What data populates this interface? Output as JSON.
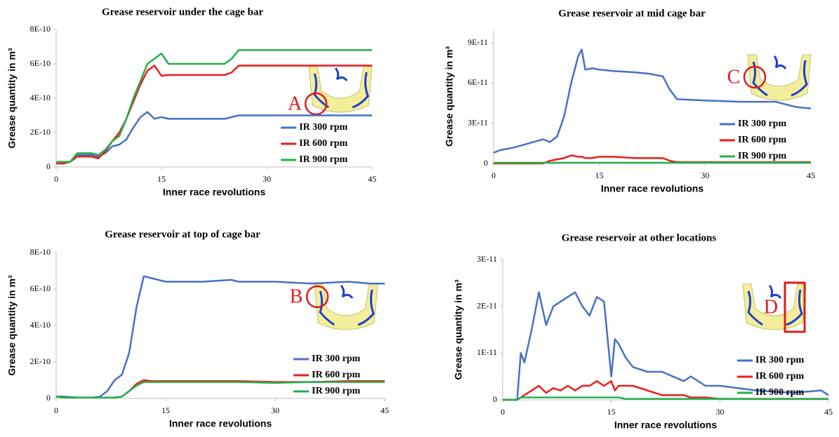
{
  "chart_data": [
    {
      "type": "line",
      "title": "Grease reservoir under the cage bar",
      "x_label": "Inner race revolutions",
      "y_label": "Grease quantity in m³",
      "annotation": "A",
      "legend": "lower right",
      "x": [
        0,
        1,
        2,
        3,
        4,
        5,
        6,
        7,
        8,
        9,
        10,
        11,
        12,
        13,
        14,
        15,
        16,
        20,
        24,
        25,
        26,
        30,
        35,
        40,
        45
      ],
      "xlim": [
        0,
        45
      ],
      "xticks": [
        0,
        15,
        30,
        45
      ],
      "ylim": [
        0,
        8e-10
      ],
      "yticks": [
        0,
        {
          "value": 2e-10,
          "label": "2E-10"
        },
        {
          "value": 4e-10,
          "label": "4E-10"
        },
        {
          "value": 6e-10,
          "label": "6E-10"
        },
        {
          "value": 8e-10,
          "label": "8E-10"
        }
      ],
      "series": [
        {
          "name": "IR 300 rpm",
          "color": "#4472c4",
          "values": [
            2e-11,
            2e-11,
            3e-11,
            7e-11,
            7e-11,
            7e-11,
            6e-11,
            8e-11,
            1.2e-10,
            1.3e-10,
            1.6e-10,
            2.3e-10,
            2.9e-10,
            3.2e-10,
            2.8e-10,
            2.9e-10,
            2.8e-10,
            2.8e-10,
            2.8e-10,
            2.9e-10,
            3e-10,
            3e-10,
            3e-10,
            3e-10,
            3e-10
          ]
        },
        {
          "name": "IR 600 rpm",
          "color": "#ee1c1c",
          "values": [
            2e-11,
            2e-11,
            3e-11,
            6e-11,
            6e-11,
            6e-11,
            5e-11,
            9e-11,
            1.5e-10,
            2e-10,
            2.8e-10,
            3.8e-10,
            4.8e-10,
            5.6e-10,
            5.9e-10,
            5.3e-10,
            5.35e-10,
            5.35e-10,
            5.35e-10,
            5.5e-10,
            5.9e-10,
            5.9e-10,
            5.9e-10,
            5.9e-10,
            5.9e-10
          ]
        },
        {
          "name": "IR 900 rpm",
          "color": "#22b14c",
          "values": [
            3e-11,
            3e-11,
            3e-11,
            8e-11,
            8e-11,
            8e-11,
            7e-11,
            1e-10,
            1.5e-10,
            1.8e-10,
            2.8e-10,
            4e-10,
            5e-10,
            6e-10,
            6.3e-10,
            6.6e-10,
            6e-10,
            6e-10,
            6e-10,
            6.3e-10,
            6.8e-10,
            6.8e-10,
            6.8e-10,
            6.8e-10,
            6.8e-10
          ]
        }
      ]
    },
    {
      "type": "line",
      "title": "Grease reservoir at mid cage bar",
      "x_label": "Inner race revolutions",
      "y_label": "Grease quantity in m³",
      "annotation": "C",
      "legend": "lower right",
      "x": [
        0,
        1,
        3,
        5,
        7,
        8,
        9,
        10,
        11,
        12,
        12.5,
        13,
        14,
        15,
        17,
        20,
        22,
        24,
        25,
        26,
        30,
        35,
        40,
        43,
        45
      ],
      "xlim": [
        0,
        45
      ],
      "xticks": [
        0,
        15,
        30,
        45
      ],
      "ylim": [
        0,
        1e-10
      ],
      "yticks": [
        0,
        {
          "value": 3e-11,
          "label": "3E-11"
        },
        {
          "value": 6e-11,
          "label": "6E-11"
        },
        {
          "value": 9e-11,
          "label": "9E-11"
        }
      ],
      "series": [
        {
          "name": "IR 300 rpm",
          "color": "#4472c4",
          "values": [
            8e-12,
            1e-11,
            1.2e-11,
            1.5e-11,
            1.8e-11,
            1.6e-11,
            2e-11,
            3.5e-11,
            6e-11,
            8e-11,
            8.5e-11,
            7e-11,
            7.1e-11,
            7e-11,
            6.9e-11,
            6.8e-11,
            6.7e-11,
            6.5e-11,
            5.5e-11,
            4.8e-11,
            4.7e-11,
            4.6e-11,
            4.6e-11,
            4.2e-11,
            4.1e-11
          ]
        },
        {
          "name": "IR 600 rpm",
          "color": "#ee1c1c",
          "values": [
            0,
            0,
            0,
            0,
            0,
            2e-12,
            3e-12,
            4e-12,
            6e-12,
            5e-12,
            5e-12,
            4e-12,
            4e-12,
            5e-12,
            5e-12,
            4e-12,
            4e-12,
            4e-12,
            2e-12,
            1e-12,
            1e-12,
            1e-12,
            1e-12,
            1e-12,
            1e-12
          ]
        },
        {
          "name": "IR 900 rpm",
          "color": "#22b14c",
          "values": [
            5e-13,
            5e-13,
            5e-13,
            5e-13,
            5e-13,
            5e-13,
            5e-13,
            5e-13,
            5e-13,
            5e-13,
            5e-13,
            5e-13,
            5e-13,
            5e-13,
            5e-13,
            5e-13,
            5e-13,
            5e-13,
            5e-13,
            5e-13,
            5e-13,
            5e-13,
            5e-13,
            5e-13,
            5e-13
          ]
        }
      ]
    },
    {
      "type": "line",
      "title": "Grease reservoir at top of cage bar",
      "x_label": "Inner race revolutions",
      "y_label": "Grease quantity in m³",
      "annotation": "B",
      "legend": "lower right",
      "x": [
        0,
        1,
        3,
        5,
        6,
        7,
        8,
        9,
        10,
        11,
        12,
        13,
        15,
        20,
        24,
        25,
        30,
        35,
        40,
        43,
        45
      ],
      "xlim": [
        0,
        45
      ],
      "xticks": [
        0,
        15,
        30,
        45
      ],
      "ylim": [
        0,
        8e-10
      ],
      "yticks": [
        0,
        {
          "value": 2e-10,
          "label": "2E-10"
        },
        {
          "value": 4e-10,
          "label": "4E-10"
        },
        {
          "value": 6e-10,
          "label": "6E-10"
        },
        {
          "value": 8e-10,
          "label": "8E-10"
        }
      ],
      "series": [
        {
          "name": "IR 300 rpm",
          "color": "#4472c4",
          "values": [
            1e-11,
            1e-11,
            5e-12,
            5e-12,
            1e-11,
            4e-11,
            1e-10,
            1.3e-10,
            2.5e-10,
            5e-10,
            6.7e-10,
            6.6e-10,
            6.4e-10,
            6.4e-10,
            6.5e-10,
            6.4e-10,
            6.4e-10,
            6.3e-10,
            6.4e-10,
            6.3e-10,
            6.3e-10
          ]
        },
        {
          "name": "IR 600 rpm",
          "color": "#ee1c1c",
          "values": [
            1e-11,
            5e-12,
            5e-12,
            5e-12,
            5e-12,
            5e-12,
            5e-12,
            1e-11,
            4e-11,
            8e-11,
            1e-10,
            9.5e-11,
            9.5e-11,
            9.5e-11,
            9.5e-11,
            9.5e-11,
            9e-11,
            9e-11,
            9.5e-11,
            9.5e-11,
            9.5e-11
          ]
        },
        {
          "name": "IR 900 rpm",
          "color": "#22b14c",
          "values": [
            1e-11,
            5e-12,
            5e-12,
            5e-12,
            5e-12,
            5e-12,
            5e-12,
            1e-11,
            4e-11,
            7e-11,
            9e-11,
            9e-11,
            9e-11,
            9e-11,
            9e-11,
            9e-11,
            8.5e-11,
            9e-11,
            9e-11,
            9e-11,
            9e-11
          ]
        }
      ]
    },
    {
      "type": "line",
      "title": "Grease reservoir at other locations",
      "x_label": "Inner race revolutions",
      "y_label": "Grease quantity in m³",
      "annotation": "D",
      "legend": "lower right",
      "x": [
        0,
        2,
        2.5,
        3,
        4,
        5,
        6,
        7,
        8,
        9,
        10,
        11,
        12,
        13,
        14,
        15,
        15.5,
        16,
        17,
        18,
        20,
        22,
        25,
        26,
        28,
        30,
        35,
        40,
        44,
        45
      ],
      "xlim": [
        0,
        45
      ],
      "xticks": [
        0,
        15,
        30,
        45
      ],
      "ylim": [
        0,
        3e-11
      ],
      "yticks": [
        0,
        {
          "value": 1e-11,
          "label": "1E-11"
        },
        {
          "value": 2e-11,
          "label": "2E-11"
        },
        {
          "value": 3e-11,
          "label": "3E-11"
        }
      ],
      "series": [
        {
          "name": "IR 300 rpm",
          "color": "#4472c4",
          "values": [
            0,
            0,
            1e-11,
            8e-12,
            1.5e-11,
            2.3e-11,
            1.6e-11,
            2e-11,
            2.1e-11,
            2.2e-11,
            2.3e-11,
            2e-11,
            1.8e-11,
            2.2e-11,
            2.1e-11,
            5e-12,
            1.3e-11,
            1.2e-11,
            9e-12,
            7e-12,
            6e-12,
            6e-12,
            4e-12,
            5e-12,
            3e-12,
            3e-12,
            2e-12,
            1.5e-12,
            2e-12,
            1e-12
          ]
        },
        {
          "name": "IR 600 rpm",
          "color": "#ee1c1c",
          "values": [
            0,
            0,
            5e-13,
            1e-12,
            2e-12,
            3e-12,
            1.5e-12,
            2.5e-12,
            2e-12,
            3e-12,
            2e-12,
            3e-12,
            3e-12,
            4e-12,
            3e-12,
            4e-12,
            2e-12,
            3e-12,
            3e-12,
            3e-12,
            2e-12,
            1e-12,
            1e-12,
            5e-13,
            5e-13,
            2e-13,
            2e-13,
            2e-13,
            2e-13,
            2e-13
          ]
        },
        {
          "name": "IR 900 rpm",
          "color": "#22b14c",
          "values": [
            0,
            0,
            5e-13,
            5e-13,
            5e-13,
            5e-13,
            5e-13,
            5e-13,
            5e-13,
            5e-13,
            5e-13,
            5e-13,
            5e-13,
            5e-13,
            5e-13,
            5e-13,
            5e-13,
            5e-13,
            2e-13,
            2e-13,
            2e-13,
            2e-13,
            2e-13,
            2e-13,
            2e-13,
            2e-13,
            2e-13,
            2e-13,
            2e-13,
            2e-13
          ]
        }
      ]
    }
  ]
}
